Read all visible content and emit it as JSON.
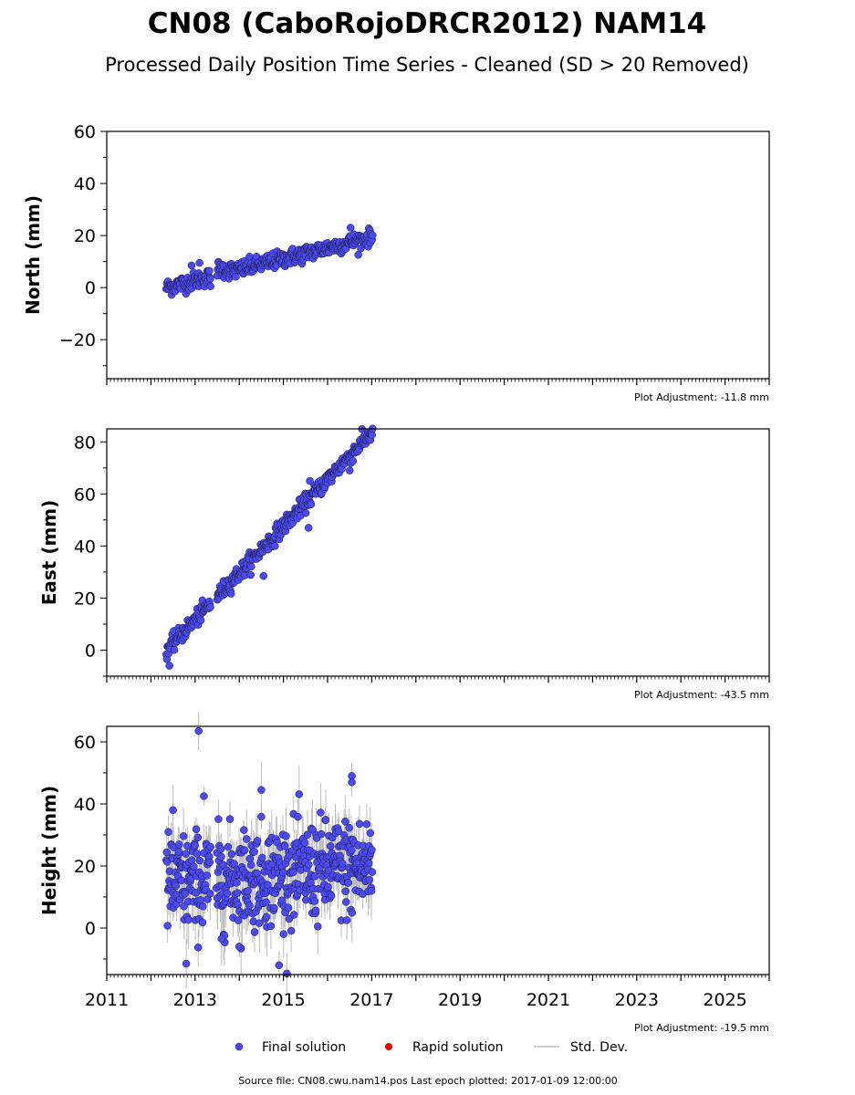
{
  "header": {
    "title": "CN08 (CaboRojoDRCR2012) NAM14",
    "subtitle": "Processed Daily Position Time Series - Cleaned (SD > 20 Removed)"
  },
  "colors": {
    "final": "#4a4aee",
    "final_edge": "#1a1a40",
    "rapid": "#dd0000",
    "stddev": "#bdbdbd"
  },
  "legend": {
    "final": "Final solution",
    "rapid": "Rapid solution",
    "stddev": "Std. Dev."
  },
  "footer": {
    "source": "Source file: CN08.cwu.nam14.pos  Last epoch plotted: 2017-01-09 12:00:00"
  },
  "chart_data": [
    {
      "type": "scatter",
      "ylabel": "North (mm)",
      "ylim": [
        -35,
        60
      ],
      "yticks": [
        -20,
        0,
        20,
        40,
        60
      ],
      "xlim": [
        2011,
        2026
      ],
      "adjustment": "Plot Adjustment: -11.8 mm",
      "series": {
        "start": 2012.35,
        "end": 2017.02,
        "step": 0.012,
        "y_start": 0.0,
        "y_end": 19.5,
        "noise": 1.6,
        "gaps": [
          [
            2013.35,
            2013.5
          ]
        ],
        "offsets": [
          [
            2013.5,
            2013.9,
            2.5
          ]
        ],
        "outliers": [
          [
            2012.92,
            8.5
          ],
          [
            2013.1,
            9.5
          ],
          [
            2016.52,
            23.0
          ],
          [
            2013.35,
            0.5
          ]
        ]
      }
    },
    {
      "type": "scatter",
      "ylabel": "East (mm)",
      "ylim": [
        -10,
        85
      ],
      "yticks": [
        0,
        20,
        40,
        60,
        80
      ],
      "xlim": [
        2011,
        2026
      ],
      "adjustment": "Plot Adjustment: -43.5 mm",
      "series": {
        "start": 2012.35,
        "end": 2017.02,
        "step": 0.012,
        "y_start": 0.0,
        "y_end": 84.0,
        "noise": 1.6,
        "gaps": [
          [
            2013.35,
            2013.5
          ]
        ],
        "offsets": [],
        "outliers": [
          [
            2012.42,
            -6.0
          ],
          [
            2015.6,
            65.0
          ],
          [
            2015.57,
            47.0
          ],
          [
            2014.55,
            28.5
          ],
          [
            2016.5,
            69.0
          ]
        ]
      }
    },
    {
      "type": "scatter",
      "ylabel": "Height (mm)",
      "ylim": [
        -15,
        65
      ],
      "yticks": [
        0,
        20,
        40,
        60
      ],
      "xlim": [
        2011,
        2026
      ],
      "xticks": [
        2011,
        2013,
        2015,
        2017,
        2019,
        2021,
        2023,
        2025
      ],
      "adjustment": "Plot Adjustment: -19.5 mm",
      "series": {
        "start": 2012.35,
        "end": 2017.02,
        "step": 0.009,
        "y_start": 14.0,
        "y_end": 20.0,
        "noise": 8.0,
        "gaps": [
          [
            2013.35,
            2013.48
          ]
        ],
        "offsets": [],
        "outliers": [
          [
            2013.08,
            63.5
          ],
          [
            2014.9,
            -12.0
          ],
          [
            2012.8,
            -11.5
          ],
          [
            2014.5,
            44.5
          ],
          [
            2016.55,
            49.0
          ],
          [
            2016.55,
            47.0
          ],
          [
            2012.5,
            38.0
          ],
          [
            2013.2,
            42.5
          ],
          [
            2013.6,
            -3.5
          ],
          [
            2014.0,
            -6.0
          ]
        ]
      }
    }
  ]
}
